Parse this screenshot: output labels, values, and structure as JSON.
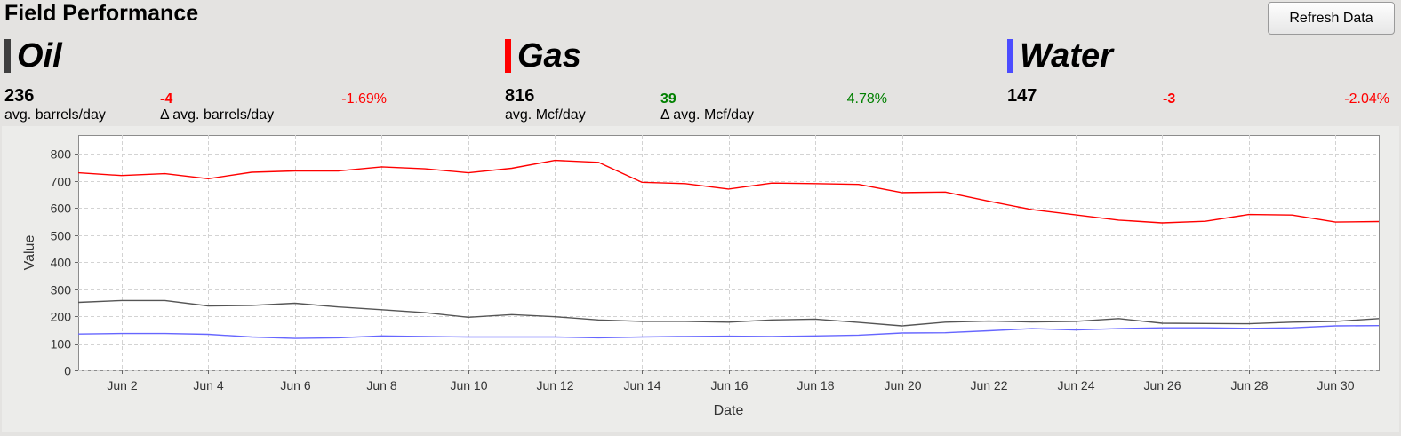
{
  "header": {
    "title": "Field Performance",
    "refresh_label": "Refresh Data"
  },
  "metrics": [
    {
      "name": "Oil",
      "color": "#3f3f3f",
      "avg": "236",
      "avg_label": "avg. barrels/day",
      "delta": "-4",
      "delta_color": "#ff0000",
      "delta_label": "Δ avg. barrels/day",
      "pct": "-1.69%",
      "pct_color": "#ff0000"
    },
    {
      "name": "Gas",
      "color": "#ff0000",
      "avg": "816",
      "avg_label": "avg. Mcf/day",
      "delta": "39",
      "delta_color": "#008000",
      "delta_label": "Δ avg. Mcf/day",
      "pct": "4.78%",
      "pct_color": "#008000"
    },
    {
      "name": "Water",
      "color": "#4c4cff",
      "avg": "147",
      "avg_label": "",
      "delta": "-3",
      "delta_color": "#ff0000",
      "delta_label": "",
      "pct": "-2.04%",
      "pct_color": "#ff0000"
    }
  ],
  "chart_data": {
    "type": "line",
    "xlabel": "Date",
    "ylabel": "Value",
    "ylim": [
      0,
      870
    ],
    "yticks": [
      0,
      100,
      200,
      300,
      400,
      500,
      600,
      700,
      800
    ],
    "x_domain": [
      "Jun 1",
      "Jul 1"
    ],
    "xtick_labels": [
      "Jun 2",
      "Jun 4",
      "Jun 6",
      "Jun 8",
      "Jun 10",
      "Jun 12",
      "Jun 14",
      "Jun 16",
      "Jun 18",
      "Jun 20",
      "Jun 22",
      "Jun 24",
      "Jun 26",
      "Jun 28",
      "Jun 30"
    ],
    "x": [
      "Jun 1",
      "Jun 2",
      "Jun 3",
      "Jun 4",
      "Jun 5",
      "Jun 6",
      "Jun 7",
      "Jun 8",
      "Jun 9",
      "Jun 10",
      "Jun 11",
      "Jun 12",
      "Jun 13",
      "Jun 14",
      "Jun 15",
      "Jun 16",
      "Jun 17",
      "Jun 18",
      "Jun 19",
      "Jun 20",
      "Jun 21",
      "Jun 22",
      "Jun 23",
      "Jun 24",
      "Jun 25",
      "Jun 26",
      "Jun 27",
      "Jun 28",
      "Jun 29",
      "Jun 30",
      "Jul 1"
    ],
    "grid": true,
    "legend": "none",
    "series": [
      {
        "color": "#ff0000",
        "values": [
          730,
          720,
          727,
          708,
          732,
          737,
          737,
          752,
          745,
          730,
          747,
          776,
          769,
          695,
          690,
          670,
          692,
          690,
          687,
          657,
          659,
          625,
          594,
          575,
          555,
          545,
          551,
          576,
          574,
          548,
          550
        ]
      },
      {
        "color": "#555555",
        "values": [
          251,
          258,
          258,
          238,
          240,
          248,
          234,
          224,
          213,
          196,
          206,
          198,
          186,
          181,
          181,
          178,
          186,
          189,
          177,
          164,
          178,
          182,
          179,
          181,
          191,
          174,
          173,
          172,
          178,
          181,
          191
        ]
      },
      {
        "color": "#6666ff",
        "values": [
          134,
          136,
          136,
          133,
          123,
          118,
          120,
          127,
          125,
          123,
          123,
          123,
          120,
          123,
          125,
          126,
          125,
          127,
          130,
          138,
          139,
          146,
          154,
          149,
          154,
          157,
          157,
          155,
          157,
          164,
          165
        ]
      }
    ]
  }
}
